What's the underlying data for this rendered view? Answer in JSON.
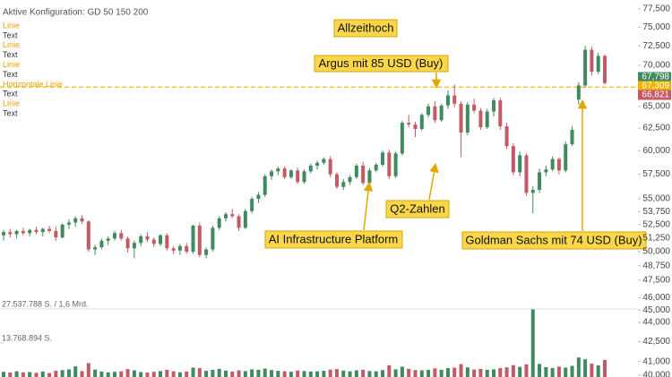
{
  "chart_data": {
    "type": "candlestick",
    "title": "Aktive Konfiguration: GD 50 150 200",
    "legend": [
      {
        "text": "Linie",
        "color": "#e8a100"
      },
      {
        "text": "Text",
        "color": "#333333"
      },
      {
        "text": "Linie",
        "color": "#e8a100"
      },
      {
        "text": "Text",
        "color": "#333333"
      },
      {
        "text": "Linie",
        "color": "#e8a100"
      },
      {
        "text": "Text",
        "color": "#333333"
      },
      {
        "text": "Horizontale Linie",
        "color": "#e8a100"
      },
      {
        "text": "Text",
        "color": "#333333"
      },
      {
        "text": "Linie",
        "color": "#e8a100"
      },
      {
        "text": "Text",
        "color": "#333333"
      }
    ],
    "log_scale": true,
    "up_color": "#3f8a5e",
    "down_color": "#c45a64",
    "ylim": [
      40000,
      77500
    ],
    "yticks": [
      {
        "value": 77500,
        "label": "77,500"
      },
      {
        "value": 75000,
        "label": "75,000"
      },
      {
        "value": 72500,
        "label": "72,500"
      },
      {
        "value": 70000,
        "label": "70,000"
      },
      {
        "value": 65000,
        "label": "65,000"
      },
      {
        "value": 62500,
        "label": "62,500"
      },
      {
        "value": 60000,
        "label": "60,000"
      },
      {
        "value": 57500,
        "label": "57,500"
      },
      {
        "value": 55000,
        "label": "55,000"
      },
      {
        "value": 53750,
        "label": "53,750"
      },
      {
        "value": 52500,
        "label": "52,500"
      },
      {
        "value": 51250,
        "label": "51,250"
      },
      {
        "value": 50000,
        "label": "50,000"
      },
      {
        "value": 48750,
        "label": "48,750"
      },
      {
        "value": 47500,
        "label": "47,500"
      },
      {
        "value": 46000,
        "label": "46,000"
      },
      {
        "value": 45000,
        "label": "45,000"
      },
      {
        "value": 44000,
        "label": "44,000"
      },
      {
        "value": 42500,
        "label": "42,500"
      },
      {
        "value": 41000,
        "label": "41,000"
      },
      {
        "value": 40000,
        "label": "40,000"
      }
    ],
    "price_markers": [
      {
        "value": 67798,
        "label": "67,798",
        "color": "#3f8a5e"
      },
      {
        "value": 67309,
        "label": "67,309",
        "color": "#f0b400"
      },
      {
        "value": 66821,
        "label": "66,821",
        "color": "#c45a64"
      }
    ],
    "horizontal_line": {
      "value": 67309,
      "color": "#f0b400"
    },
    "annotations": [
      "Allzeithoch",
      "Argus mit 85 USD (Buy)",
      "Q2-Zahlen",
      "AI Infrastructure Platform",
      "Goldman Sachs mit 74 USD (Buy)"
    ],
    "ohlc": [
      [
        51500,
        52000,
        51000,
        51800
      ],
      [
        51800,
        52100,
        51300,
        51600
      ],
      [
        51600,
        52000,
        51200,
        51900
      ],
      [
        51900,
        52200,
        51500,
        51700
      ],
      [
        51700,
        52100,
        51400,
        52000
      ],
      [
        52000,
        52300,
        51600,
        51800
      ],
      [
        51800,
        52200,
        51400,
        52100
      ],
      [
        52100,
        52400,
        51700,
        51900
      ],
      [
        51900,
        52300,
        51000,
        51300
      ],
      [
        51300,
        52600,
        51200,
        52500
      ],
      [
        52500,
        53000,
        52100,
        52700
      ],
      [
        52700,
        53300,
        52300,
        53100
      ],
      [
        53100,
        53400,
        52600,
        52800
      ],
      [
        52800,
        52900,
        50000,
        50200
      ],
      [
        50200,
        50600,
        49700,
        50400
      ],
      [
        50400,
        51200,
        50200,
        51000
      ],
      [
        51000,
        51400,
        50600,
        51200
      ],
      [
        51200,
        51900,
        51000,
        51700
      ],
      [
        51700,
        52000,
        51000,
        51200
      ],
      [
        51200,
        51400,
        49900,
        50300
      ],
      [
        50300,
        51000,
        49400,
        50800
      ],
      [
        50800,
        51600,
        50500,
        51400
      ],
      [
        51400,
        51800,
        50900,
        51100
      ],
      [
        51100,
        51300,
        50400,
        50700
      ],
      [
        50700,
        51600,
        50500,
        51500
      ],
      [
        51500,
        51700,
        50100,
        50300
      ],
      [
        50300,
        50500,
        49800,
        50100
      ],
      [
        50100,
        50700,
        49700,
        50500
      ],
      [
        50500,
        50800,
        49800,
        50000
      ],
      [
        50000,
        52500,
        49800,
        52400
      ],
      [
        52400,
        52700,
        49500,
        49700
      ],
      [
        49700,
        50400,
        49400,
        50200
      ],
      [
        50200,
        52400,
        50000,
        52200
      ],
      [
        52200,
        53300,
        52000,
        53100
      ],
      [
        53100,
        53700,
        52800,
        53500
      ],
      [
        53500,
        54000,
        53100,
        53300
      ],
      [
        53300,
        53500,
        51900,
        52200
      ],
      [
        52200,
        54000,
        52100,
        53800
      ],
      [
        53800,
        55200,
        53600,
        55000
      ],
      [
        55000,
        55700,
        54600,
        55400
      ],
      [
        55400,
        57500,
        55200,
        57300
      ],
      [
        57300,
        58000,
        56900,
        57800
      ],
      [
        57800,
        58300,
        57400,
        58100
      ],
      [
        58100,
        58300,
        57000,
        57200
      ],
      [
        57200,
        58000,
        57000,
        57900
      ],
      [
        57900,
        58200,
        56500,
        56700
      ],
      [
        56700,
        58000,
        56500,
        57800
      ],
      [
        57800,
        58600,
        57600,
        58400
      ],
      [
        58400,
        58900,
        58000,
        58700
      ],
      [
        58700,
        59300,
        58500,
        59100
      ],
      [
        59100,
        59400,
        57200,
        57500
      ],
      [
        57500,
        57700,
        56000,
        56200
      ],
      [
        56200,
        57000,
        55900,
        56700
      ],
      [
        56700,
        57400,
        56400,
        57200
      ],
      [
        57200,
        58600,
        57000,
        58400
      ],
      [
        58400,
        58800,
        56400,
        56600
      ],
      [
        56600,
        58100,
        56300,
        57900
      ],
      [
        57900,
        58700,
        57700,
        58500
      ],
      [
        58500,
        60000,
        58300,
        59800
      ],
      [
        59800,
        60100,
        57000,
        57300
      ],
      [
        57300,
        59900,
        57100,
        59700
      ],
      [
        59700,
        63300,
        59500,
        63100
      ],
      [
        63100,
        64000,
        62600,
        62900
      ],
      [
        62900,
        63200,
        61500,
        62400
      ],
      [
        62400,
        64200,
        62200,
        64000
      ],
      [
        64000,
        65300,
        63700,
        65000
      ],
      [
        65000,
        65600,
        63100,
        63400
      ],
      [
        63400,
        65300,
        63200,
        65100
      ],
      [
        65100,
        66900,
        64700,
        66300
      ],
      [
        66300,
        67600,
        64900,
        65300
      ],
      [
        65300,
        65600,
        59300,
        62000
      ],
      [
        62000,
        65500,
        61700,
        65200
      ],
      [
        65200,
        65900,
        64200,
        64500
      ],
      [
        64500,
        64800,
        62300,
        62600
      ],
      [
        62600,
        64700,
        62400,
        64400
      ],
      [
        64400,
        66000,
        63800,
        65700
      ],
      [
        65700,
        66000,
        62300,
        62700
      ],
      [
        62700,
        63100,
        60200,
        60500
      ],
      [
        60500,
        60800,
        57400,
        57700
      ],
      [
        57700,
        59900,
        57300,
        59500
      ],
      [
        59500,
        59700,
        55300,
        55600
      ],
      [
        55600,
        56300,
        53600,
        55900
      ],
      [
        55900,
        58100,
        55600,
        57700
      ],
      [
        57700,
        58400,
        57300,
        58000
      ],
      [
        58000,
        59400,
        57800,
        59100
      ],
      [
        59100,
        59300,
        57500,
        57900
      ],
      [
        57900,
        61000,
        57700,
        60700
      ],
      [
        60700,
        62700,
        60500,
        62300
      ],
      [
        65800,
        67900,
        65200,
        67500
      ],
      [
        67500,
        72500,
        67200,
        72000
      ],
      [
        72000,
        72400,
        68700,
        69200
      ],
      [
        69200,
        71600,
        68900,
        71200
      ],
      [
        71200,
        71400,
        67600,
        67798
      ]
    ],
    "volume": [
      2100000,
      1800000,
      2300000,
      1900000,
      2000000,
      1700000,
      2200000,
      1600000,
      2500000,
      2800000,
      3100000,
      4300000,
      2400000,
      5600000,
      3000000,
      2200000,
      1900000,
      2100000,
      2300000,
      3200000,
      2700000,
      2000000,
      1800000,
      2100000,
      2400000,
      2900000,
      2300000,
      1900000,
      2200000,
      3800000,
      3600000,
      2500000,
      2900000,
      3300000,
      2600000,
      2200000,
      2700000,
      2400000,
      3100000,
      2900000,
      3400000,
      2800000,
      2500000,
      2300000,
      2100000,
      2600000,
      2400000,
      2200000,
      2300000,
      2500000,
      3000000,
      3200000,
      2600000,
      2300000,
      2700000,
      2900000,
      2400000,
      2300000,
      2800000,
      4700000,
      3100000,
      4200000,
      3300000,
      2800000,
      2700000,
      2900000,
      3500000,
      2900000,
      3600000,
      3800000,
      5200000,
      3900000,
      3000000,
      3300000,
      2900000,
      3100000,
      3600000,
      3900000,
      4800000,
      4100000,
      5100000,
      27537788,
      5300000,
      4000000,
      3600000,
      4200000,
      3800000,
      4500000,
      7900000,
      7200000,
      5400000,
      4700000,
      6900000
    ],
    "volume_ticks": [
      {
        "value": 27537788,
        "label": "27.537.788 S. / 1,6 Mrd."
      },
      {
        "value": 13768894,
        "label": "13.768.894 S."
      }
    ]
  }
}
